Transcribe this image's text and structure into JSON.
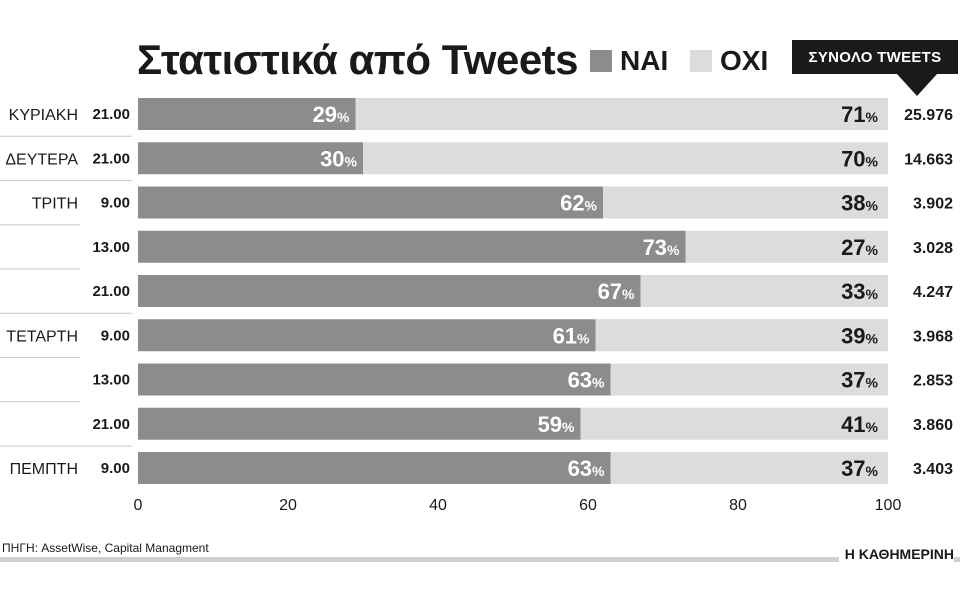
{
  "chart_data": {
    "type": "bar",
    "stacked": true,
    "orientation": "horizontal",
    "title": "Στατιστικά από Tweets",
    "rows": [
      {
        "day": "ΚΥΡΙΑΚΗ",
        "time": "21.00",
        "yes": 29,
        "no": 71,
        "total": "25.976"
      },
      {
        "day": "ΔΕΥΤΕΡΑ",
        "time": "21.00",
        "yes": 30,
        "no": 70,
        "total": "14.663"
      },
      {
        "day": "ΤΡΙΤΗ",
        "time": "9.00",
        "yes": 62,
        "no": 38,
        "total": "3.902"
      },
      {
        "day": "",
        "time": "13.00",
        "yes": 73,
        "no": 27,
        "total": "3.028"
      },
      {
        "day": "",
        "time": "21.00",
        "yes": 67,
        "no": 33,
        "total": "4.247"
      },
      {
        "day": "ΤΕΤΑΡΤΗ",
        "time": "9.00",
        "yes": 61,
        "no": 39,
        "total": "3.968"
      },
      {
        "day": "",
        "time": "13.00",
        "yes": 63,
        "no": 37,
        "total": "2.853"
      },
      {
        "day": "",
        "time": "21.00",
        "yes": 59,
        "no": 41,
        "total": "3.860"
      },
      {
        "day": "ΠΕΜΠΤΗ",
        "time": "9.00",
        "yes": 63,
        "no": 37,
        "total": "3.403"
      }
    ],
    "series": [
      {
        "name": "ΝΑΙ",
        "key": "yes",
        "color": "#8c8c8d"
      },
      {
        "name": "ΟΧΙ",
        "key": "no",
        "color": "#dcdcdd"
      }
    ],
    "percent_sign": "%",
    "xlim": [
      0,
      100
    ],
    "xticks": [
      0,
      20,
      40,
      60,
      80,
      100
    ],
    "total_header": "ΣΥΝΟΛΟ TWEETS",
    "grid": false,
    "legend_position": "top"
  },
  "source": "ΠΗΓΗ: AssetWise, Capital Managment",
  "brand": "Η ΚΑΘΗΜΕΡΙΝΗ",
  "colors": {
    "text": "#1a1a1a",
    "separator": "#c8c8c8"
  }
}
